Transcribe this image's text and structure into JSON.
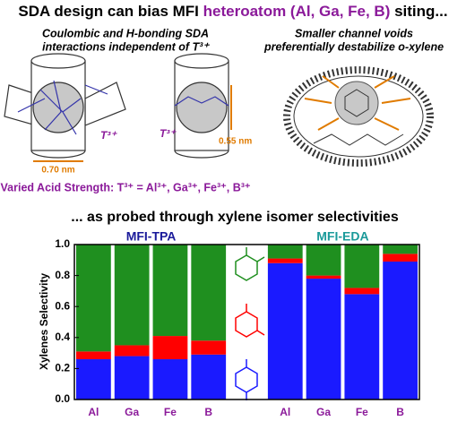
{
  "header": {
    "title_parts": [
      "SDA design can bias MFI ",
      "heteroatom (Al, Ga, Fe, B)",
      " siting..."
    ]
  },
  "left_panel": {
    "caption": [
      "Coulombic and H-bonding SDA",
      "interactions independent of T³⁺"
    ],
    "t_label_a": "T³⁺",
    "t_label_b": "T³⁺",
    "width_a": "0.70 nm",
    "width_b": "0.55 nm",
    "acid_strength": "Varied Acid Strength: T³⁺ = Al³⁺, Ga³⁺, Fe³⁺, B³⁺"
  },
  "right_panel": {
    "caption": [
      "Smaller channel voids",
      "preferentially destabilize o-xylene"
    ]
  },
  "chart_data": {
    "type": "stacked_bar",
    "title": "... as probed through xylene isomer selectivities",
    "groups": [
      "MFI-TPA",
      "MFI-EDA"
    ],
    "categories": [
      "Al",
      "Ga",
      "Fe",
      "B",
      null,
      "Al",
      "Ga",
      "Fe",
      "B"
    ],
    "series": [
      {
        "color": "#1a1aff",
        "values": [
          0.26,
          0.28,
          0.26,
          0.29,
          null,
          0.88,
          0.78,
          0.68,
          0.89
        ]
      },
      {
        "color": "#ff0000",
        "values": [
          0.05,
          0.07,
          0.15,
          0.09,
          null,
          0.03,
          0.02,
          0.04,
          0.05
        ]
      },
      {
        "color": "#1f8f1f",
        "values": [
          0.69,
          0.65,
          0.59,
          0.62,
          null,
          0.09,
          0.2,
          0.28,
          0.06
        ]
      }
    ],
    "y_label": "Xylenes Selectivity",
    "ylim": [
      0,
      1
    ],
    "yticks": [
      {
        "value": 0,
        "label": "0.0"
      },
      0.2,
      0.4,
      0.6,
      0.8,
      {
        "value": 1,
        "label": "1.0"
      }
    ]
  }
}
